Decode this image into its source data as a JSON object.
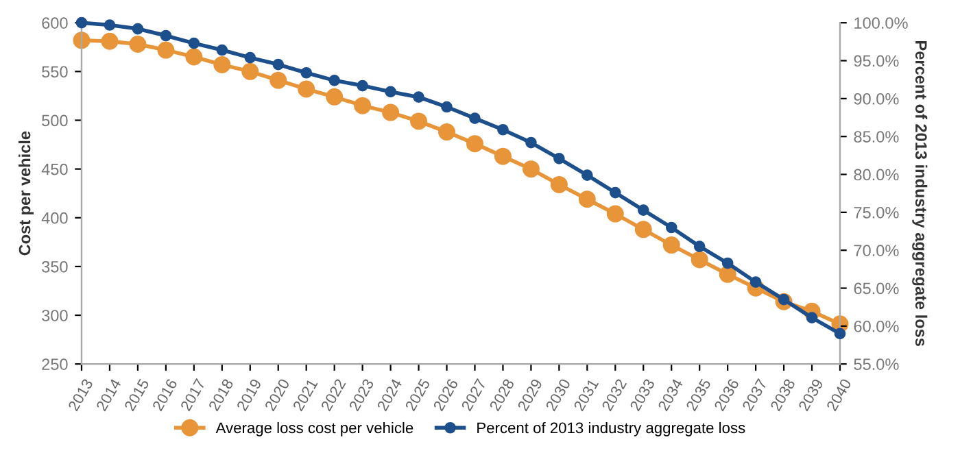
{
  "chart_data": {
    "type": "line",
    "ylabel": "Cost per vehicle",
    "y2label": "Percent of 2013 industry aggregate loss",
    "categories": [
      "2013",
      "2014",
      "2015",
      "2016",
      "2017",
      "2018",
      "2019",
      "2020",
      "2021",
      "2022",
      "2023",
      "2024",
      "2025",
      "2026",
      "2027",
      "2028",
      "2029",
      "2030",
      "2031",
      "2032",
      "2033",
      "2034",
      "2035",
      "2036",
      "2037",
      "2038",
      "2039",
      "2040"
    ],
    "series": [
      {
        "name": "Average loss cost per vehicle",
        "color": "#e8953a",
        "values": [
          582,
          581,
          578,
          572,
          565,
          557,
          550,
          541,
          532,
          524,
          515,
          508,
          499,
          488,
          476,
          463,
          450,
          434,
          419,
          404,
          388,
          372,
          357,
          342,
          328,
          314,
          304,
          291
        ]
      },
      {
        "name": "Percent of 2013 industry aggregate loss",
        "color": "#1d4f8c",
        "axis": "y2",
        "values": [
          100,
          99.7,
          99.2,
          98.3,
          97.3,
          96.4,
          95.4,
          94.5,
          93.4,
          92.4,
          91.7,
          90.9,
          90.2,
          88.9,
          87.4,
          85.9,
          84.2,
          82.1,
          79.9,
          77.6,
          75.3,
          73.0,
          70.5,
          68.3,
          65.8,
          63.5,
          61.1,
          59.0
        ]
      }
    ],
    "ylim": [
      250,
      600
    ],
    "yticks": [
      250,
      300,
      350,
      400,
      450,
      500,
      550,
      600
    ],
    "y2lim": [
      55,
      100
    ],
    "y2ticks": [
      {
        "value": 55,
        "label": "55.0%"
      },
      {
        "value": 60,
        "label": "60.0%"
      },
      {
        "value": 65,
        "label": "65.0%"
      },
      {
        "value": 70,
        "label": "70.0%"
      },
      {
        "value": 75,
        "label": "75.0%"
      },
      {
        "value": 80,
        "label": "80.0%"
      },
      {
        "value": 85,
        "label": "85.0%"
      },
      {
        "value": 90,
        "label": "90.0%"
      },
      {
        "value": 95,
        "label": "95.0%"
      },
      {
        "value": 100,
        "label": "100.0%"
      }
    ],
    "legend": "bottom",
    "grid": false,
    "marker": "circle",
    "line_style": "solid"
  }
}
